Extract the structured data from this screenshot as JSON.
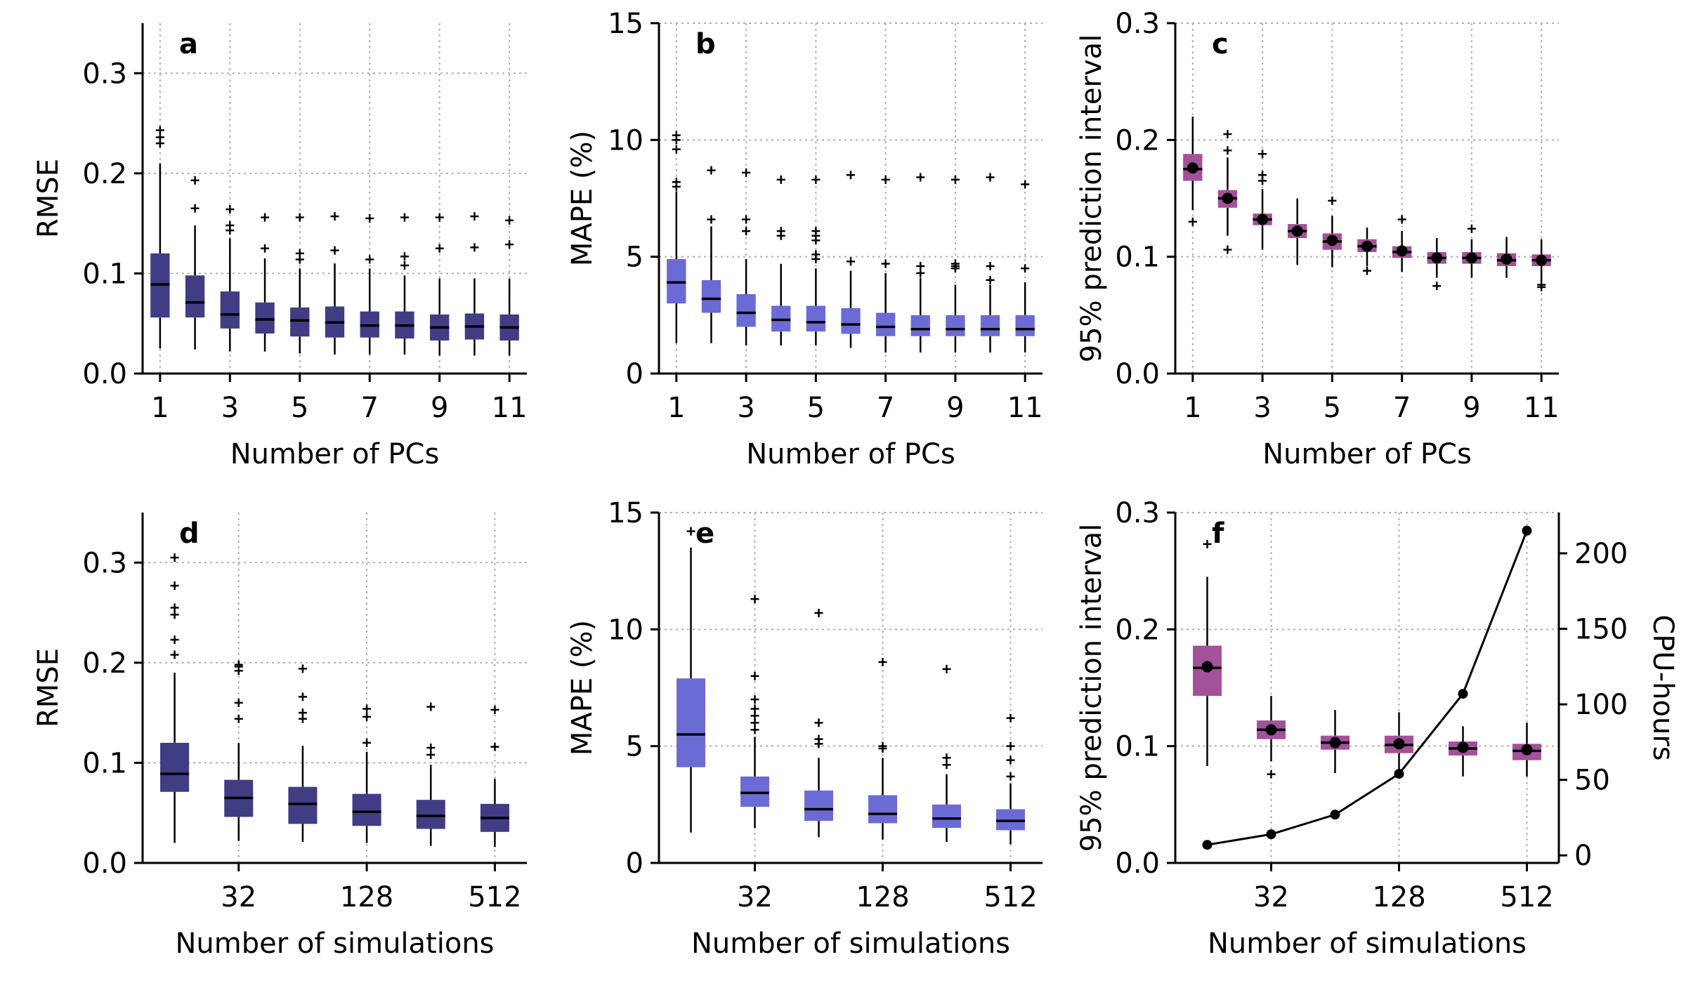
{
  "chart_data": [
    {
      "panel": "a",
      "type": "box",
      "xlabel": "Number of PCs",
      "ylabel": "RMSE",
      "ylim": [
        0,
        0.35
      ],
      "yticks": [
        0.0,
        0.1,
        0.2,
        0.3
      ],
      "ytick_labels": [
        "0.0",
        "0.1",
        "0.2",
        "0.3"
      ],
      "x_tick_labels": [
        "1",
        "3",
        "5",
        "7",
        "9",
        "11"
      ],
      "color": "#403d85",
      "grid": true,
      "boxes": [
        {
          "x": "1",
          "whislo": 0.025,
          "q1": 0.056,
          "med": 0.089,
          "q3": 0.12,
          "whishi": 0.21,
          "fliers": [
            0.23,
            0.236,
            0.243
          ]
        },
        {
          "x": "2",
          "whislo": 0.024,
          "q1": 0.056,
          "med": 0.071,
          "q3": 0.098,
          "whishi": 0.148,
          "fliers": [
            0.165,
            0.193
          ]
        },
        {
          "x": "3",
          "whislo": 0.022,
          "q1": 0.045,
          "med": 0.059,
          "q3": 0.082,
          "whishi": 0.135,
          "fliers": [
            0.143,
            0.148,
            0.164
          ]
        },
        {
          "x": "4",
          "whislo": 0.022,
          "q1": 0.04,
          "med": 0.054,
          "q3": 0.071,
          "whishi": 0.115,
          "fliers": [
            0.125,
            0.156
          ]
        },
        {
          "x": "5",
          "whislo": 0.02,
          "q1": 0.037,
          "med": 0.053,
          "q3": 0.066,
          "whishi": 0.105,
          "fliers": [
            0.114,
            0.12,
            0.156
          ]
        },
        {
          "x": "6",
          "whislo": 0.019,
          "q1": 0.036,
          "med": 0.051,
          "q3": 0.067,
          "whishi": 0.11,
          "fliers": [
            0.123,
            0.157
          ]
        },
        {
          "x": "7",
          "whislo": 0.019,
          "q1": 0.036,
          "med": 0.048,
          "q3": 0.062,
          "whishi": 0.105,
          "fliers": [
            0.114,
            0.155
          ]
        },
        {
          "x": "8",
          "whislo": 0.019,
          "q1": 0.035,
          "med": 0.048,
          "q3": 0.062,
          "whishi": 0.098,
          "fliers": [
            0.108,
            0.117,
            0.156
          ]
        },
        {
          "x": "9",
          "whislo": 0.018,
          "q1": 0.033,
          "med": 0.046,
          "q3": 0.059,
          "whishi": 0.095,
          "fliers": [
            0.125,
            0.156
          ]
        },
        {
          "x": "10",
          "whislo": 0.018,
          "q1": 0.034,
          "med": 0.047,
          "q3": 0.06,
          "whishi": 0.095,
          "fliers": [
            0.126,
            0.157
          ]
        },
        {
          "x": "11",
          "whislo": 0.018,
          "q1": 0.033,
          "med": 0.046,
          "q3": 0.059,
          "whishi": 0.095,
          "fliers": [
            0.129,
            0.153
          ]
        }
      ]
    },
    {
      "panel": "b",
      "type": "box",
      "xlabel": "Number of PCs",
      "ylabel": "MAPE (%)",
      "ylim": [
        0,
        15
      ],
      "yticks": [
        0,
        5,
        10,
        15
      ],
      "ytick_labels": [
        "0",
        "5",
        "10",
        "15"
      ],
      "x_tick_labels": [
        "1",
        "3",
        "5",
        "7",
        "9",
        "11"
      ],
      "color": "#6b6bd6",
      "grid": true,
      "boxes": [
        {
          "x": "1",
          "whislo": 1.3,
          "q1": 3.0,
          "med": 3.9,
          "q3": 4.9,
          "whishi": 7.8,
          "fliers": [
            8.0,
            8.2,
            9.6,
            10.0,
            10.2
          ]
        },
        {
          "x": "2",
          "whislo": 1.3,
          "q1": 2.6,
          "med": 3.2,
          "q3": 4.0,
          "whishi": 6.3,
          "fliers": [
            6.6,
            8.7
          ]
        },
        {
          "x": "3",
          "whislo": 1.2,
          "q1": 2.0,
          "med": 2.6,
          "q3": 3.4,
          "whishi": 4.9,
          "fliers": [
            6.1,
            6.6,
            8.6
          ]
        },
        {
          "x": "4",
          "whislo": 1.2,
          "q1": 1.8,
          "med": 2.3,
          "q3": 2.9,
          "whishi": 4.7,
          "fliers": [
            5.9,
            6.1,
            8.3
          ]
        },
        {
          "x": "5",
          "whislo": 1.2,
          "q1": 1.8,
          "med": 2.2,
          "q3": 2.9,
          "whishi": 4.5,
          "fliers": [
            4.9,
            5.1,
            5.7,
            5.9,
            6.1,
            8.3
          ]
        },
        {
          "x": "6",
          "whislo": 1.1,
          "q1": 1.7,
          "med": 2.1,
          "q3": 2.8,
          "whishi": 4.4,
          "fliers": [
            4.8,
            8.5
          ]
        },
        {
          "x": "7",
          "whislo": 0.9,
          "q1": 1.6,
          "med": 2.0,
          "q3": 2.6,
          "whishi": 4.3,
          "fliers": [
            4.7,
            8.3
          ]
        },
        {
          "x": "8",
          "whislo": 0.9,
          "q1": 1.6,
          "med": 1.9,
          "q3": 2.5,
          "whishi": 4.1,
          "fliers": [
            4.3,
            4.6,
            8.4
          ]
        },
        {
          "x": "9",
          "whislo": 0.9,
          "q1": 1.6,
          "med": 1.9,
          "q3": 2.5,
          "whishi": 3.8,
          "fliers": [
            4.5,
            4.6,
            4.7,
            8.3
          ]
        },
        {
          "x": "10",
          "whislo": 0.9,
          "q1": 1.6,
          "med": 1.9,
          "q3": 2.5,
          "whishi": 3.8,
          "fliers": [
            4.0,
            4.6,
            8.4
          ]
        },
        {
          "x": "11",
          "whislo": 0.9,
          "q1": 1.6,
          "med": 1.9,
          "q3": 2.5,
          "whishi": 3.9,
          "fliers": [
            4.5,
            8.1
          ]
        }
      ]
    },
    {
      "panel": "c",
      "type": "box",
      "xlabel": "Number of PCs",
      "ylabel": "95% prediction interval",
      "ylim": [
        0,
        0.3
      ],
      "yticks": [
        0.0,
        0.1,
        0.2,
        0.3
      ],
      "ytick_labels": [
        "0.0",
        "0.1",
        "0.2",
        "0.3"
      ],
      "x_tick_labels": [
        "1",
        "3",
        "5",
        "7",
        "9",
        "11"
      ],
      "color": "#a3519a",
      "grid": true,
      "boxes": [
        {
          "x": "1",
          "whislo": 0.14,
          "q1": 0.165,
          "med": 0.175,
          "q3": 0.188,
          "mean": 0.176,
          "whishi": 0.22,
          "fliers": [
            0.13
          ]
        },
        {
          "x": "2",
          "whislo": 0.118,
          "q1": 0.142,
          "med": 0.15,
          "q3": 0.157,
          "mean": 0.15,
          "whishi": 0.185,
          "fliers": [
            0.106,
            0.191,
            0.205
          ]
        },
        {
          "x": "3",
          "whislo": 0.106,
          "q1": 0.127,
          "med": 0.132,
          "q3": 0.137,
          "mean": 0.132,
          "whishi": 0.158,
          "fliers": [
            0.165,
            0.17,
            0.188
          ]
        },
        {
          "x": "4",
          "whislo": 0.093,
          "q1": 0.116,
          "med": 0.122,
          "q3": 0.128,
          "mean": 0.122,
          "whishi": 0.15,
          "fliers": []
        },
        {
          "x": "5",
          "whislo": 0.091,
          "q1": 0.106,
          "med": 0.113,
          "q3": 0.12,
          "mean": 0.114,
          "whishi": 0.135,
          "fliers": [
            0.148
          ]
        },
        {
          "x": "6",
          "whislo": 0.092,
          "q1": 0.104,
          "med": 0.109,
          "q3": 0.115,
          "mean": 0.109,
          "whishi": 0.125,
          "fliers": [
            0.088
          ]
        },
        {
          "x": "7",
          "whislo": 0.087,
          "q1": 0.099,
          "med": 0.104,
          "q3": 0.109,
          "mean": 0.105,
          "whishi": 0.122,
          "fliers": [
            0.132
          ]
        },
        {
          "x": "8",
          "whislo": 0.082,
          "q1": 0.094,
          "med": 0.099,
          "q3": 0.104,
          "mean": 0.099,
          "whishi": 0.116,
          "fliers": [
            0.075
          ]
        },
        {
          "x": "9",
          "whislo": 0.082,
          "q1": 0.094,
          "med": 0.099,
          "q3": 0.104,
          "mean": 0.099,
          "whishi": 0.115,
          "fliers": [
            0.124
          ]
        },
        {
          "x": "10",
          "whislo": 0.082,
          "q1": 0.092,
          "med": 0.097,
          "q3": 0.103,
          "mean": 0.098,
          "whishi": 0.117,
          "fliers": []
        },
        {
          "x": "11",
          "whislo": 0.079,
          "q1": 0.092,
          "med": 0.097,
          "q3": 0.102,
          "mean": 0.097,
          "whishi": 0.115,
          "fliers": [
            0.074,
            0.076
          ]
        }
      ]
    },
    {
      "panel": "d",
      "type": "box",
      "xlabel": "Number of simulations",
      "ylabel": "RMSE",
      "ylim": [
        0,
        0.35
      ],
      "yticks": [
        0.0,
        0.1,
        0.2,
        0.3
      ],
      "ytick_labels": [
        "0.0",
        "0.1",
        "0.2",
        "0.3"
      ],
      "x_tick_labels": [
        "32",
        "128",
        "512"
      ],
      "x_tick_positions": [
        2,
        4,
        6
      ],
      "color": "#403d85",
      "grid": true,
      "boxes": [
        {
          "x": "16",
          "whislo": 0.02,
          "q1": 0.071,
          "med": 0.089,
          "q3": 0.12,
          "whishi": 0.19,
          "fliers": [
            0.208,
            0.223,
            0.248,
            0.255,
            0.277,
            0.305
          ]
        },
        {
          "x": "32",
          "whislo": 0.022,
          "q1": 0.046,
          "med": 0.065,
          "q3": 0.083,
          "whishi": 0.12,
          "fliers": [
            0.144,
            0.16,
            0.192,
            0.196,
            0.198
          ]
        },
        {
          "x": "64",
          "whislo": 0.021,
          "q1": 0.039,
          "med": 0.059,
          "q3": 0.076,
          "whishi": 0.117,
          "fliers": [
            0.144,
            0.15,
            0.166,
            0.194
          ]
        },
        {
          "x": "128",
          "whislo": 0.02,
          "q1": 0.037,
          "med": 0.051,
          "q3": 0.069,
          "whishi": 0.111,
          "fliers": [
            0.12,
            0.146,
            0.154
          ]
        },
        {
          "x": "256",
          "whislo": 0.017,
          "q1": 0.034,
          "med": 0.047,
          "q3": 0.063,
          "whishi": 0.098,
          "fliers": [
            0.108,
            0.115,
            0.156
          ]
        },
        {
          "x": "512",
          "whislo": 0.016,
          "q1": 0.031,
          "med": 0.045,
          "q3": 0.059,
          "whishi": 0.084,
          "fliers": [
            0.116,
            0.153
          ]
        }
      ]
    },
    {
      "panel": "e",
      "type": "box",
      "xlabel": "Number of simulations",
      "ylabel": "MAPE (%)",
      "ylim": [
        0,
        15
      ],
      "yticks": [
        0,
        5,
        10,
        15
      ],
      "ytick_labels": [
        "0",
        "5",
        "10",
        "15"
      ],
      "x_tick_labels": [
        "32",
        "128",
        "512"
      ],
      "x_tick_positions": [
        2,
        4,
        6
      ],
      "color": "#6b6bd6",
      "grid": true,
      "boxes": [
        {
          "x": "16",
          "whislo": 1.3,
          "q1": 4.1,
          "med": 5.5,
          "q3": 7.9,
          "whishi": 13.5,
          "fliers": [
            14.2
          ]
        },
        {
          "x": "32",
          "whislo": 1.5,
          "q1": 2.4,
          "med": 3.0,
          "q3": 3.7,
          "whishi": 5.4,
          "fliers": [
            5.7,
            6.0,
            6.3,
            6.6,
            7.0,
            8.0,
            11.3
          ]
        },
        {
          "x": "64",
          "whislo": 1.1,
          "q1": 1.8,
          "med": 2.3,
          "q3": 3.1,
          "whishi": 4.5,
          "fliers": [
            5.1,
            5.3,
            6.0,
            10.7
          ]
        },
        {
          "x": "128",
          "whislo": 1.0,
          "q1": 1.7,
          "med": 2.1,
          "q3": 2.9,
          "whishi": 4.5,
          "fliers": [
            4.9,
            5.0,
            8.6
          ]
        },
        {
          "x": "256",
          "whislo": 0.9,
          "q1": 1.5,
          "med": 1.9,
          "q3": 2.5,
          "whishi": 3.8,
          "fliers": [
            4.2,
            4.5,
            8.3
          ]
        },
        {
          "x": "512",
          "whislo": 0.8,
          "q1": 1.4,
          "med": 1.8,
          "q3": 2.3,
          "whishi": 3.4,
          "fliers": [
            3.7,
            4.4,
            5.0,
            6.2
          ]
        }
      ]
    },
    {
      "panel": "f",
      "type": "box",
      "xlabel": "Number of simulations",
      "ylabel": "95% prediction interval",
      "ylabel_right": "CPU-hours",
      "ylim": [
        0,
        0.3
      ],
      "yticks": [
        0.0,
        0.1,
        0.2,
        0.3
      ],
      "ytick_labels": [
        "0.0",
        "0.1",
        "0.2",
        "0.3"
      ],
      "ylim_right": [
        -5,
        227
      ],
      "yticks_right": [
        0,
        50,
        100,
        150,
        200
      ],
      "ytick_labels_right": [
        "0",
        "50",
        "100",
        "150",
        "200"
      ],
      "x_tick_labels": [
        "32",
        "128",
        "512"
      ],
      "x_tick_positions": [
        2,
        4,
        6
      ],
      "color": "#a3519a",
      "grid": true,
      "boxes": [
        {
          "x": "16",
          "whislo": 0.083,
          "q1": 0.143,
          "med": 0.167,
          "q3": 0.186,
          "mean": 0.168,
          "whishi": 0.245,
          "fliers": [
            0.273
          ]
        },
        {
          "x": "32",
          "whislo": 0.087,
          "q1": 0.106,
          "med": 0.114,
          "q3": 0.122,
          "mean": 0.114,
          "whishi": 0.143,
          "fliers": [
            0.076
          ]
        },
        {
          "x": "64",
          "whislo": 0.077,
          "q1": 0.097,
          "med": 0.103,
          "q3": 0.109,
          "mean": 0.103,
          "whishi": 0.131,
          "fliers": []
        },
        {
          "x": "128",
          "whislo": 0.079,
          "q1": 0.094,
          "med": 0.101,
          "q3": 0.109,
          "mean": 0.102,
          "whishi": 0.129,
          "fliers": []
        },
        {
          "x": "256",
          "whislo": 0.074,
          "q1": 0.092,
          "med": 0.098,
          "q3": 0.104,
          "mean": 0.099,
          "whishi": 0.117,
          "fliers": []
        },
        {
          "x": "512",
          "whislo": 0.074,
          "q1": 0.088,
          "med": 0.096,
          "q3": 0.102,
          "mean": 0.097,
          "whishi": 0.12,
          "fliers": []
        }
      ],
      "cpu_hours": [
        7,
        14,
        27,
        54,
        107,
        215
      ]
    }
  ]
}
